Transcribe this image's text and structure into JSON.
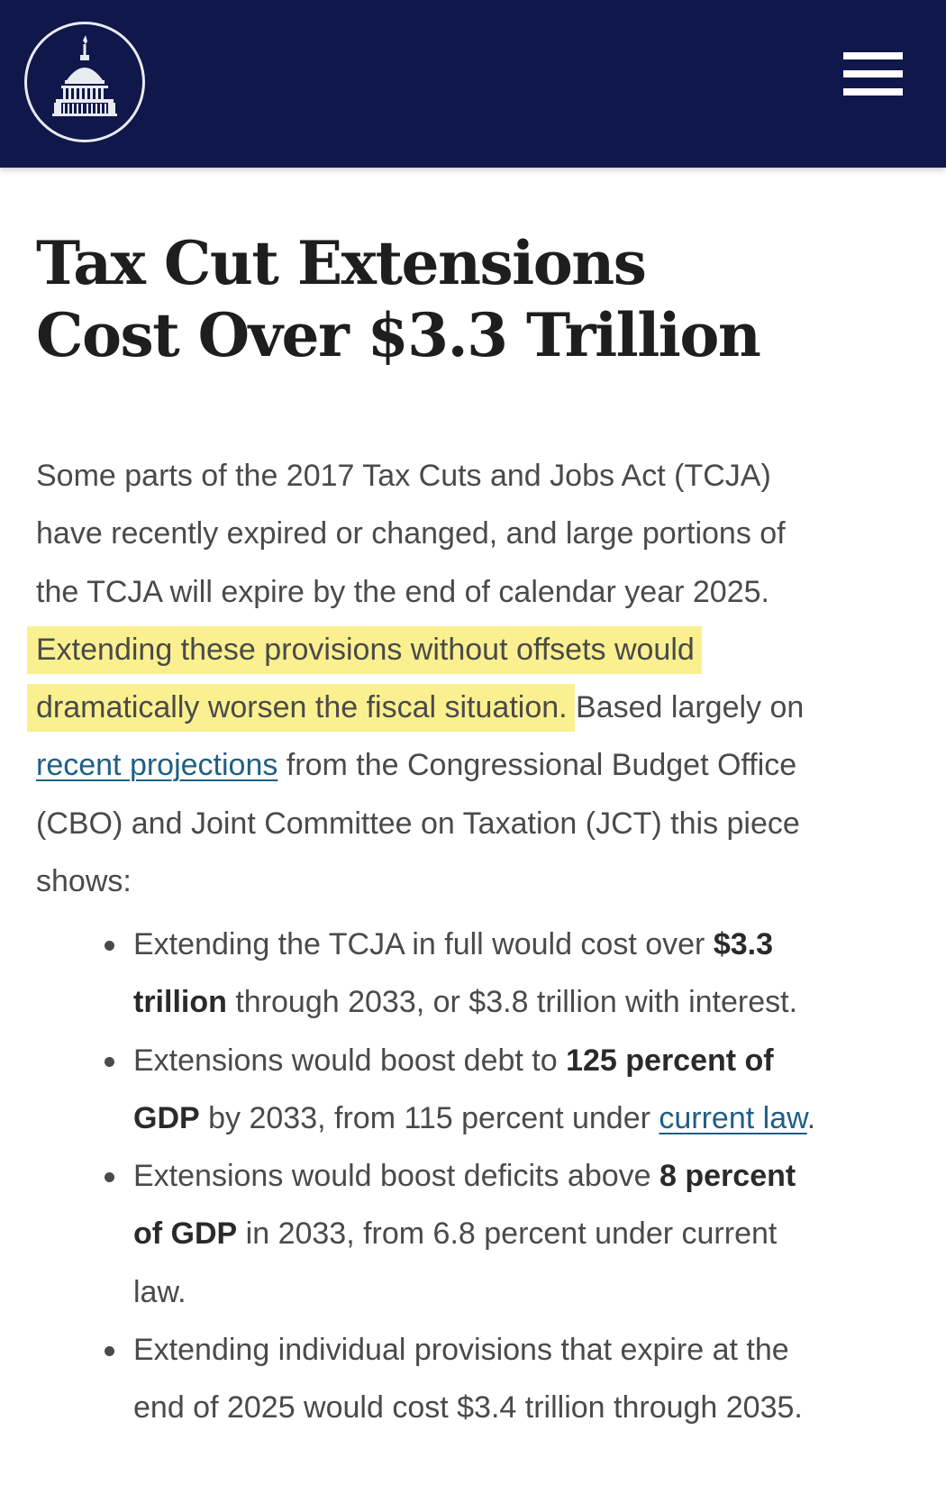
{
  "header": {
    "logo_icon": "capitol-dome-icon",
    "menu_icon": "hamburger-menu-icon",
    "background_color": "#10174a"
  },
  "article": {
    "title_line1": "Tax Cut Extensions",
    "title_line2": "Cost Over $3.3 Trillion",
    "intro": {
      "l1": "Some parts of the 2017 Tax Cuts and Jobs Act (TCJA)",
      "l2": "have recently expired or changed, and large portions of",
      "l3": "the TCJA will expire by the end of calendar year 2025.",
      "hl1": "Extending these provisions without offsets would",
      "hl2": "dramatically worsen the fiscal situation.",
      "l5_rest": " Based largely on",
      "link_recent": "recent projections",
      "l6_rest": " from the Congressional Budget Office",
      "l7": "(CBO) and Joint Committee on Taxation (JCT) this piece",
      "l8": "shows:"
    },
    "bullets": {
      "b1_pre": "Extending the TCJA in full would cost over ",
      "b1_bold1": "$3.3",
      "b1_bold2": "trillion",
      "b1_post": " through 2033, or $3.8 trillion with interest.",
      "b2_pre": "Extensions would boost debt to ",
      "b2_bold1": "125 percent of",
      "b2_bold2": "GDP",
      "b2_mid": " by 2033, from 115 percent under ",
      "b2_link": "current law",
      "b2_end": ".",
      "b3_pre": "Extensions would boost deficits above ",
      "b3_bold1": "8 percent",
      "b3_bold2": "of GDP",
      "b3_mid": " in 2033, from 6.8 percent under current",
      "b3_end": "law.",
      "b4_l1": "Extending individual provisions that expire at the",
      "b4_l2": "end of 2025 would cost $3.4 trillion through 2035."
    },
    "highlight_color": "#fbf08f",
    "link_color": "#1f5f86"
  }
}
